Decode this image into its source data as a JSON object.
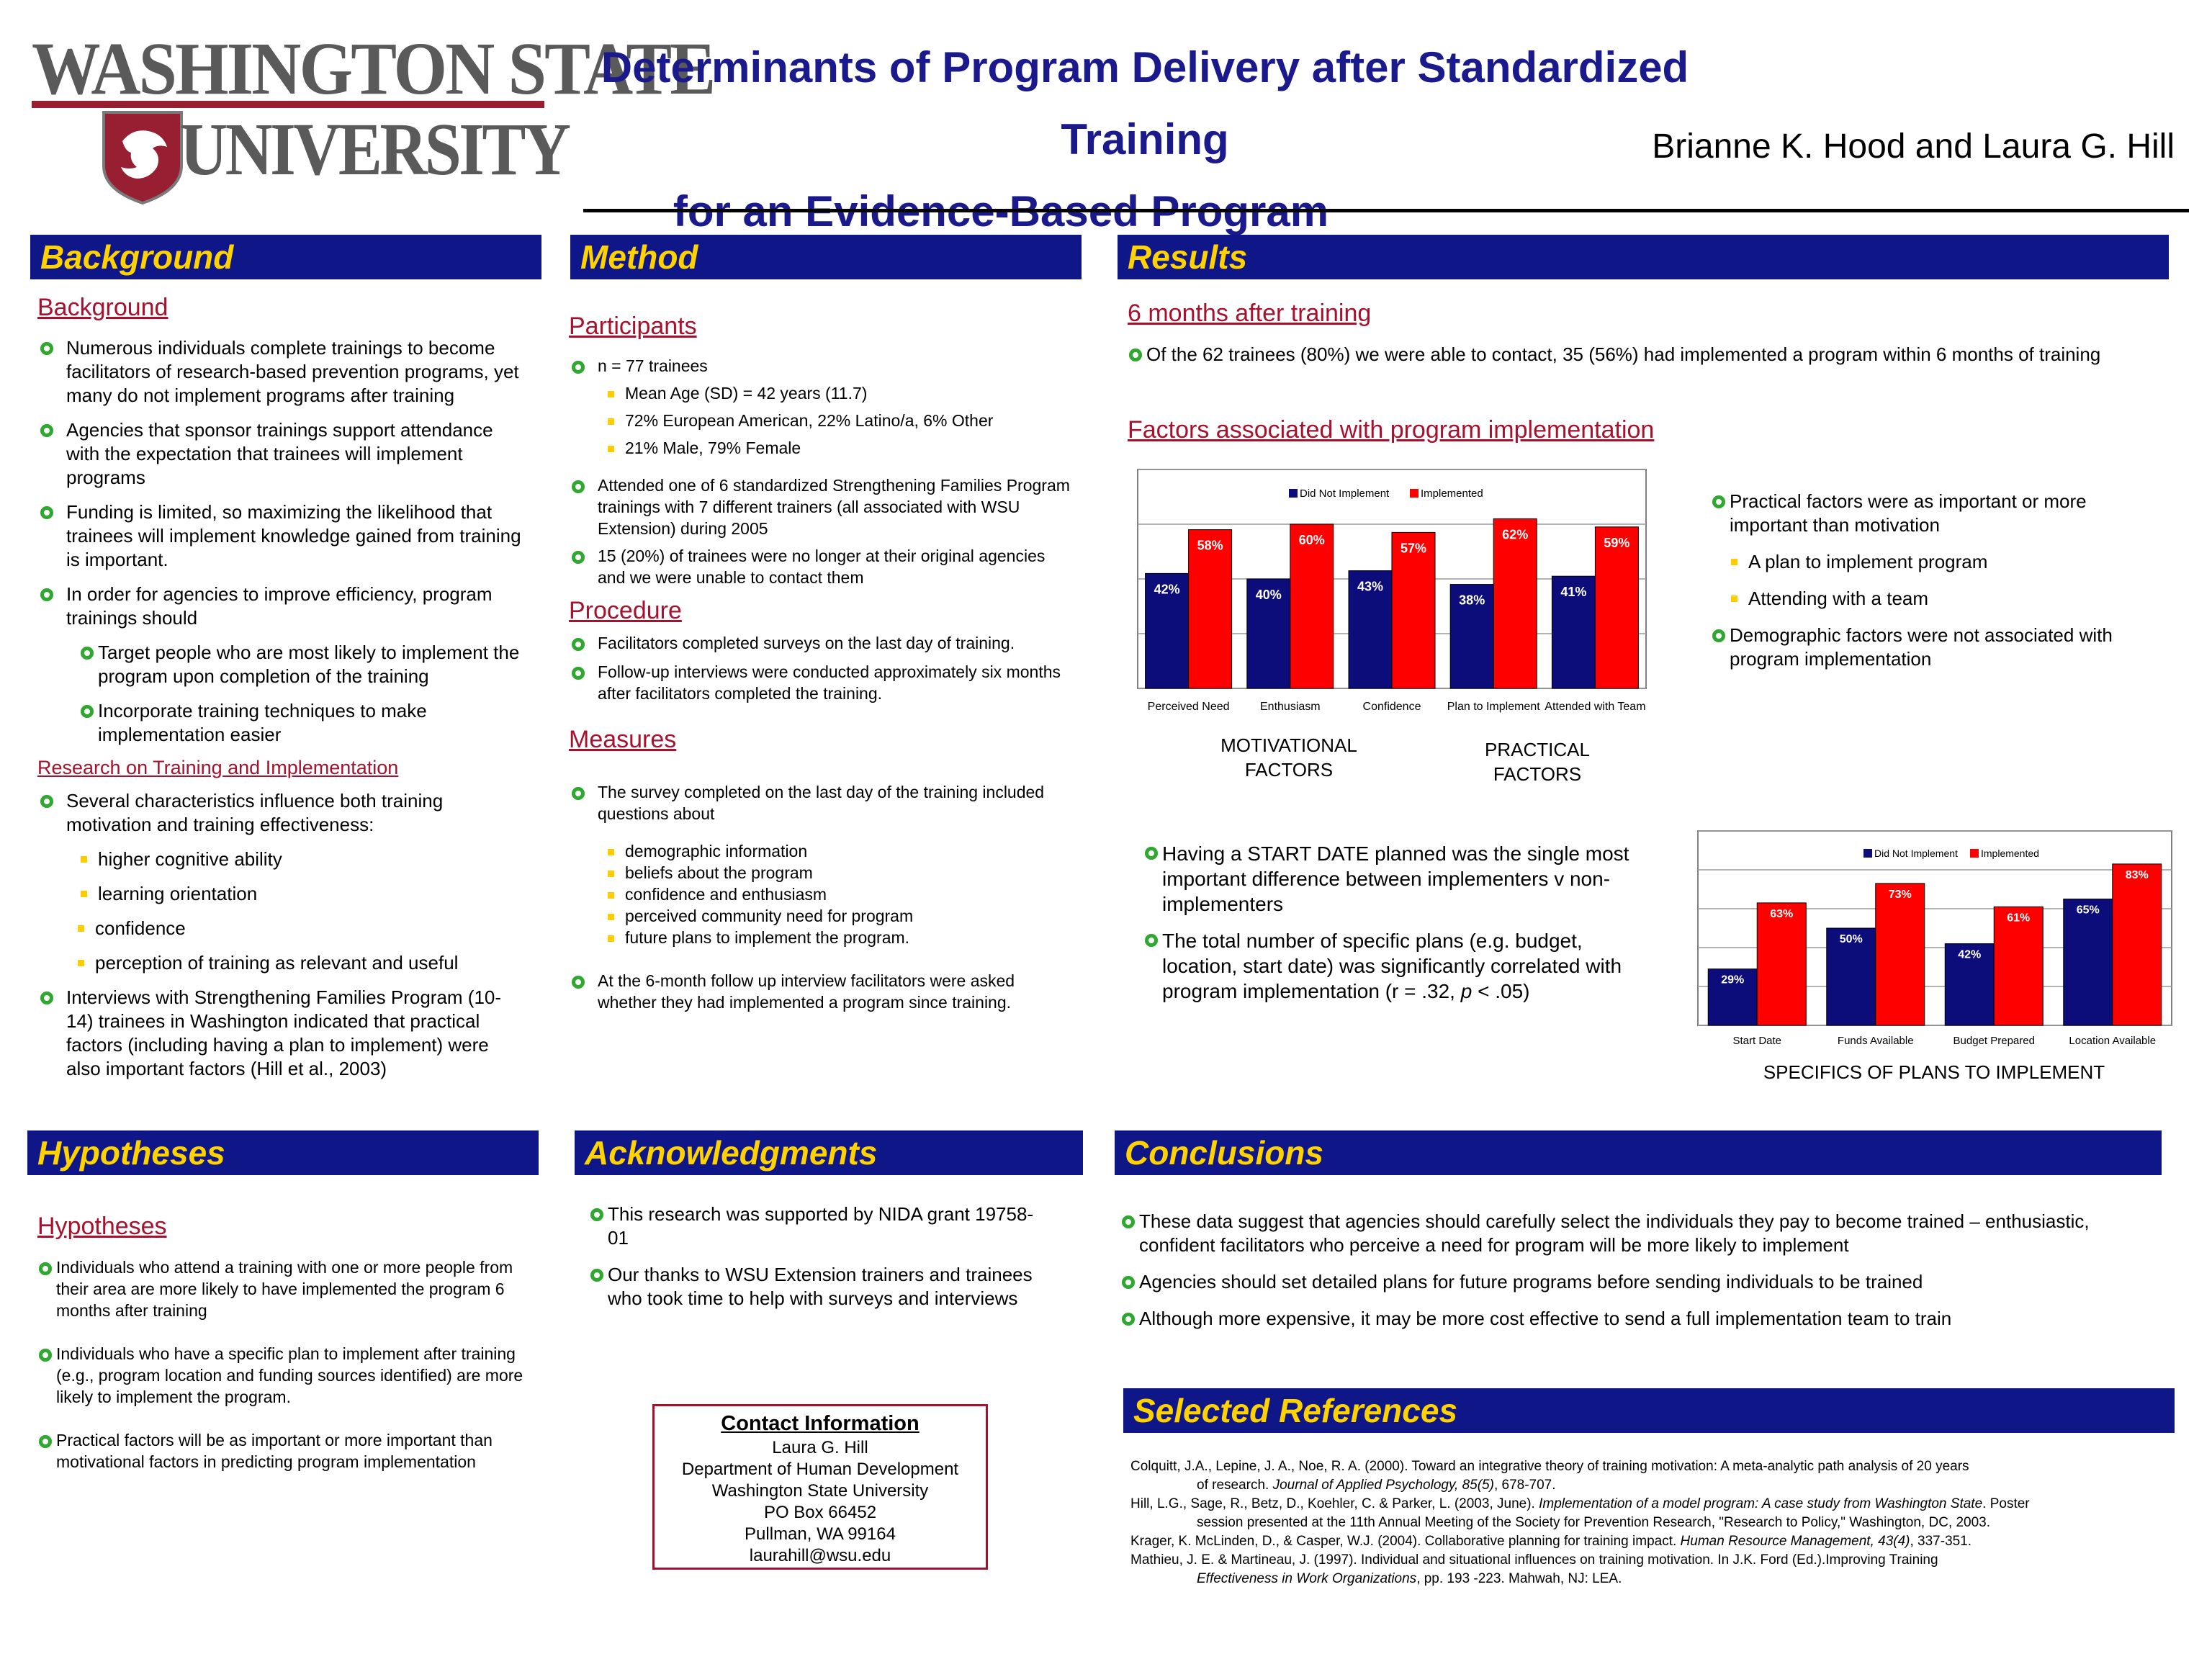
{
  "header": {
    "logo_top": "WASHINGTON STATE",
    "logo_bottom": "UNIVERSITY",
    "title_line1": "Determinants of Program Delivery after Standardized Training",
    "title_line2": "for an Evidence-Based Program",
    "authors": "Brianne K. Hood and Laura G. Hill"
  },
  "background": {
    "bar": "Background",
    "sub1": "Background",
    "b1": "Numerous individuals complete trainings to become facilitators of research-based prevention programs, yet many do not implement programs after training",
    "b2": "Agencies that sponsor trainings support attendance with the expectation that trainees will implement programs",
    "b3": "Funding is limited, so maximizing the likelihood that trainees will implement knowledge gained from training is important.",
    "b4": "In order for agencies to improve efficiency, program trainings should",
    "b4a": "Target people who are most likely to implement the program upon completion of the training",
    "b4b": "Incorporate training techniques to make implementation easier",
    "sub2": "Research on Training and Implementation",
    "b5": "Several characteristics influence both training motivation and training effectiveness:",
    "s1": "higher cognitive ability",
    "s2": "learning orientation",
    "s3": "confidence",
    "s4": "perception of training as relevant and useful",
    "b6": "Interviews with Strengthening Families Program (10-14) trainees in Washington indicated that practical factors (including having a plan to implement) were also important factors (Hill et al., 2003)"
  },
  "method": {
    "bar": "Method",
    "participants": "Participants",
    "p1": "n = 77 trainees",
    "p1a": "Mean Age (SD) = 42 years (11.7)",
    "p1b": "72% European American, 22% Latino/a, 6% Other",
    "p1c": "21% Male, 79% Female",
    "p2": "Attended one of 6 standardized Strengthening Families Program trainings with 7 different trainers (all associated with WSU Extension) during 2005",
    "p3": " 15 (20%) of trainees were no longer at their original agencies and we were unable to contact them",
    "procedure": "Procedure",
    "pr1": "Facilitators completed surveys on the last day of training.",
    "pr2": "Follow-up interviews were conducted approximately six months after facilitators completed the training.",
    "measures": "Measures",
    "m1": "The survey completed on the last day of the training included questions about",
    "m1a": "demographic information",
    "m1b": "beliefs about the program",
    "m1c": "confidence and enthusiasm",
    "m1d": "perceived community need for program",
    "m1e": "future plans to implement the program.",
    "m2": "At the 6-month follow up interview facilitators were asked whether they had implemented a program since training."
  },
  "results": {
    "bar": "Results",
    "sub1": "6 months after training",
    "r1": "Of the 62 trainees (80%) we were able to contact,  35 (56%) had implemented a program within 6 months of training",
    "sub2": "Factors associated with program implementation",
    "motivational": "MOTIVATIONAL FACTORS",
    "practical": "PRACTICAL FACTORS",
    "side1": "Practical factors were as important or more important than motivation",
    "side1a": "A plan to implement program",
    "side1b": "Attending with a team",
    "side2": "Demographic factors were not associated with program implementation",
    "start1": "Having a START DATE planned was the single most important difference between implementers v non-implementers",
    "start2_a": "The total number of specific plans (e.g. budget, location, start date) was significantly correlated with program implementation (r = .32, ",
    "start2_p": "p",
    "start2_b": " < .05)",
    "specifics": "SPECIFICS OF PLANS TO IMPLEMENT"
  },
  "chart_data": [
    {
      "type": "bar",
      "categories": [
        "Perceived Need",
        "Enthusiasm",
        "Confidence",
        "Plan to Implement",
        "Attended with Team"
      ],
      "series": [
        {
          "name": "Did Not Implement",
          "values": [
            42,
            40,
            43,
            38,
            41
          ],
          "color": "#0c0c7a"
        },
        {
          "name": "Implemented",
          "values": [
            58,
            60,
            57,
            62,
            59
          ],
          "color": "#ff0000"
        }
      ],
      "value_suffix": "%",
      "ylim": [
        0,
        80
      ],
      "legend": "top-center",
      "grid": true
    },
    {
      "type": "bar",
      "categories": [
        "Start Date",
        "Funds Available",
        "Budget Prepared",
        "Location Available"
      ],
      "series": [
        {
          "name": "Did Not Implement",
          "values": [
            29,
            50,
            42,
            65
          ],
          "color": "#0c0c7a"
        },
        {
          "name": "Implemented",
          "values": [
            63,
            73,
            61,
            83
          ],
          "color": "#ff0000"
        }
      ],
      "value_suffix": "%",
      "ylim": [
        0,
        100
      ],
      "legend": "top-center",
      "grid": true
    }
  ],
  "hypotheses": {
    "bar": "Hypotheses",
    "sub": "Hypotheses",
    "h1": "Individuals who attend a training with one or more people from their area are more likely to have implemented the program 6 months after training",
    "h2": "Individuals who have a specific plan to implement after training (e.g., program location and funding sources identified) are more likely to implement the program.",
    "h3": "Practical factors will be as important or more important than motivational factors in predicting program implementation"
  },
  "acknowledgments": {
    "bar": "Acknowledgments",
    "a1": "This research was supported by NIDA grant 19758-01",
    "a2": "Our thanks to WSU Extension trainers and trainees who took time to help with surveys and interviews"
  },
  "contact": {
    "heading": "Contact Information",
    "lines": [
      "Laura G. Hill",
      "Department of Human Development",
      "Washington State University",
      "PO Box 66452",
      "Pullman, WA 99164",
      "laurahill@wsu.edu"
    ]
  },
  "conclusions": {
    "bar": "Conclusions",
    "c1": "These data suggest that agencies should carefully select the individuals they pay to become trained – enthusiastic, confident facilitators who perceive a need for program will be more likely to implement",
    "c2": "Agencies should set detailed plans for future programs before sending individuals to be trained",
    "c3": "Although more expensive, it may be more cost effective to send a full implementation team to train"
  },
  "references": {
    "bar": "Selected References",
    "r1a": "Colquitt, J.A., Lepine, J. A., Noe, R. A. (2000). Toward an integrative theory of training motivation: A meta-analytic path analysis of 20 years",
    "r1b": "of research. ",
    "r1c": "Journal of Applied Psychology, 85(5)",
    "r1d": ", 678-707.",
    "r2a": "Hill, L.G., Sage, R., Betz, D., Koehler, C. & Parker, L. (2003, June). ",
    "r2b": "Implementation of a model program: A case study from Washington State",
    "r2c": ". Poster",
    "r2d": "session presented at the 11th Annual Meeting of the Society for Prevention Research, \"Research to Policy,\" Washington, DC, 2003.",
    "r3a": "Krager, K. McLinden, D., & Casper, W.J. (2004). Collaborative planning for training impact. ",
    "r3b": "Human Resource Management, 43(4)",
    "r3c": ", 337-351.",
    "r4a": "Mathieu, J. E. & Martineau, J. (1997). Individual and situational influences on training motivation. In J.K. Ford (Ed.).Improving Training",
    "r4b": "Effectiveness in Work Organizations",
    "r4c": ", pp. 193 -223. Mahwah, NJ: LEA."
  }
}
